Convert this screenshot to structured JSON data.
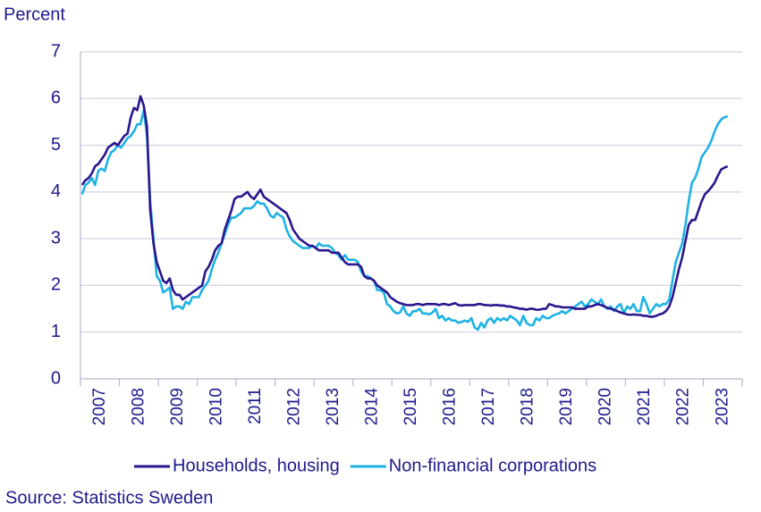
{
  "chart_data": {
    "type": "line",
    "y_label": "Percent",
    "source": "Source: Statistics Sweden",
    "categories": [
      null,
      null,
      null,
      null,
      null,
      null,
      "2007",
      null,
      null,
      null,
      null,
      null,
      null,
      null,
      null,
      null,
      null,
      null,
      "2008",
      null,
      null,
      null,
      null,
      null,
      null,
      null,
      null,
      null,
      null,
      null,
      "2009",
      null,
      null,
      null,
      null,
      null,
      null,
      null,
      null,
      null,
      null,
      null,
      "2010",
      null,
      null,
      null,
      null,
      null,
      null,
      null,
      null,
      null,
      null,
      null,
      "2011",
      null,
      null,
      null,
      null,
      null,
      null,
      null,
      null,
      null,
      null,
      null,
      "2012",
      null,
      null,
      null,
      null,
      null,
      null,
      null,
      null,
      null,
      null,
      null,
      "2013",
      null,
      null,
      null,
      null,
      null,
      null,
      null,
      null,
      null,
      null,
      null,
      "2014",
      null,
      null,
      null,
      null,
      null,
      null,
      null,
      null,
      null,
      null,
      null,
      "2015",
      null,
      null,
      null,
      null,
      null,
      null,
      null,
      null,
      null,
      null,
      null,
      "2016",
      null,
      null,
      null,
      null,
      null,
      null,
      null,
      null,
      null,
      null,
      null,
      "2017",
      null,
      null,
      null,
      null,
      null,
      null,
      null,
      null,
      null,
      null,
      null,
      "2018",
      null,
      null,
      null,
      null,
      null,
      null,
      null,
      null,
      null,
      null,
      null,
      "2019",
      null,
      null,
      null,
      null,
      null,
      null,
      null,
      null,
      null,
      null,
      null,
      "2020",
      null,
      null,
      null,
      null,
      null,
      null,
      null,
      null,
      null,
      null,
      null,
      "2021",
      null,
      null,
      null,
      null,
      null,
      null,
      null,
      null,
      null,
      null,
      null,
      "2022",
      null,
      null,
      null,
      null,
      null,
      null,
      null,
      null,
      null,
      null,
      null,
      "2023",
      null
    ],
    "series": [
      {
        "name": "Households, housing",
        "color": "#2a168c",
        "values": [
          4.15,
          4.25,
          4.3,
          4.4,
          4.55,
          4.6,
          4.7,
          4.8,
          4.95,
          5.0,
          5.05,
          5.0,
          5.1,
          5.2,
          5.25,
          5.6,
          5.8,
          5.75,
          6.05,
          5.85,
          5.4,
          3.6,
          2.9,
          2.5,
          2.3,
          2.1,
          2.05,
          2.15,
          1.9,
          1.8,
          1.8,
          1.7,
          1.75,
          1.8,
          1.85,
          1.9,
          1.95,
          2.0,
          2.3,
          2.4,
          2.55,
          2.75,
          2.85,
          2.9,
          3.2,
          3.4,
          3.6,
          3.85,
          3.9,
          3.9,
          3.95,
          4.0,
          3.9,
          3.85,
          3.95,
          4.05,
          3.9,
          3.85,
          3.8,
          3.75,
          3.7,
          3.65,
          3.6,
          3.55,
          3.4,
          3.2,
          3.1,
          3.0,
          2.95,
          2.9,
          2.85,
          2.85,
          2.8,
          2.75,
          2.75,
          2.75,
          2.75,
          2.7,
          2.7,
          2.7,
          2.6,
          2.5,
          2.45,
          2.45,
          2.45,
          2.45,
          2.4,
          2.2,
          2.15,
          2.15,
          2.1,
          2.0,
          1.95,
          1.9,
          1.85,
          1.75,
          1.7,
          1.65,
          1.62,
          1.6,
          1.58,
          1.58,
          1.58,
          1.6,
          1.6,
          1.58,
          1.6,
          1.6,
          1.6,
          1.6,
          1.58,
          1.6,
          1.6,
          1.58,
          1.6,
          1.62,
          1.58,
          1.57,
          1.58,
          1.58,
          1.58,
          1.58,
          1.6,
          1.6,
          1.58,
          1.58,
          1.57,
          1.58,
          1.58,
          1.57,
          1.57,
          1.55,
          1.55,
          1.53,
          1.52,
          1.5,
          1.5,
          1.48,
          1.5,
          1.5,
          1.48,
          1.48,
          1.5,
          1.5,
          1.6,
          1.58,
          1.55,
          1.55,
          1.53,
          1.53,
          1.53,
          1.53,
          1.5,
          1.5,
          1.5,
          1.5,
          1.55,
          1.55,
          1.58,
          1.6,
          1.58,
          1.55,
          1.52,
          1.5,
          1.48,
          1.45,
          1.42,
          1.4,
          1.38,
          1.37,
          1.38,
          1.37,
          1.37,
          1.35,
          1.35,
          1.33,
          1.33,
          1.35,
          1.38,
          1.4,
          1.45,
          1.55,
          1.75,
          2.05,
          2.35,
          2.6,
          2.95,
          3.3,
          3.4,
          3.4,
          3.6,
          3.8,
          3.95,
          4.02,
          4.1,
          4.2,
          4.35,
          4.48,
          4.52,
          4.55
        ]
      },
      {
        "name": "Non-financial corporations",
        "color": "#1eb2e3",
        "values": [
          3.95,
          4.15,
          4.2,
          4.3,
          4.15,
          4.45,
          4.5,
          4.45,
          4.7,
          4.85,
          4.9,
          5.0,
          4.95,
          5.05,
          5.15,
          5.2,
          5.3,
          5.45,
          5.45,
          5.75,
          5.2,
          3.8,
          3.0,
          2.2,
          2.1,
          1.85,
          1.9,
          1.95,
          1.5,
          1.55,
          1.55,
          1.5,
          1.65,
          1.6,
          1.75,
          1.75,
          1.75,
          1.9,
          2.0,
          2.1,
          2.35,
          2.55,
          2.7,
          2.9,
          3.1,
          3.3,
          3.45,
          3.45,
          3.5,
          3.55,
          3.65,
          3.65,
          3.65,
          3.7,
          3.8,
          3.75,
          3.75,
          3.65,
          3.5,
          3.45,
          3.55,
          3.5,
          3.45,
          3.2,
          3.05,
          2.95,
          2.9,
          2.85,
          2.8,
          2.8,
          2.8,
          2.85,
          2.8,
          2.9,
          2.85,
          2.85,
          2.85,
          2.8,
          2.7,
          2.65,
          2.55,
          2.65,
          2.55,
          2.55,
          2.55,
          2.5,
          2.3,
          2.2,
          2.2,
          2.15,
          2.1,
          1.9,
          1.9,
          1.85,
          1.6,
          1.55,
          1.45,
          1.4,
          1.42,
          1.55,
          1.4,
          1.35,
          1.45,
          1.45,
          1.5,
          1.4,
          1.4,
          1.38,
          1.42,
          1.5,
          1.3,
          1.35,
          1.25,
          1.3,
          1.25,
          1.25,
          1.2,
          1.22,
          1.25,
          1.22,
          1.3,
          1.1,
          1.05,
          1.2,
          1.1,
          1.25,
          1.3,
          1.2,
          1.3,
          1.25,
          1.3,
          1.25,
          1.35,
          1.3,
          1.25,
          1.15,
          1.35,
          1.2,
          1.15,
          1.15,
          1.3,
          1.25,
          1.35,
          1.3,
          1.3,
          1.35,
          1.38,
          1.4,
          1.45,
          1.4,
          1.45,
          1.5,
          1.55,
          1.6,
          1.65,
          1.55,
          1.6,
          1.7,
          1.65,
          1.6,
          1.7,
          1.55,
          1.5,
          1.55,
          1.45,
          1.55,
          1.6,
          1.4,
          1.55,
          1.5,
          1.6,
          1.45,
          1.45,
          1.75,
          1.6,
          1.4,
          1.5,
          1.6,
          1.55,
          1.6,
          1.6,
          1.7,
          2.1,
          2.5,
          2.7,
          2.9,
          3.3,
          3.8,
          4.2,
          4.3,
          4.5,
          4.75,
          4.85,
          4.95,
          5.1,
          5.3,
          5.45,
          5.55,
          5.6,
          5.62
        ]
      }
    ],
    "ylim": [
      0,
      7
    ],
    "yticks": [
      0,
      1,
      2,
      3,
      4,
      5,
      6,
      7
    ],
    "grid": true
  }
}
